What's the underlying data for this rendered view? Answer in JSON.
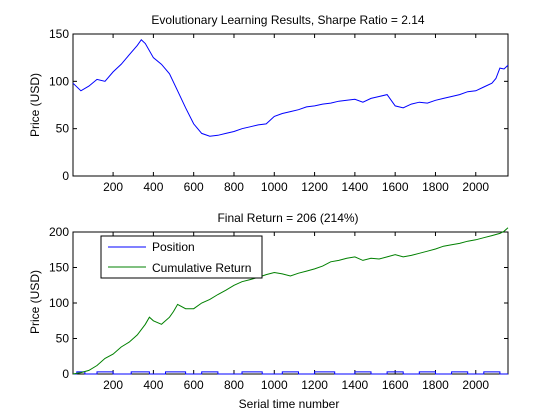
{
  "chart_data": [
    {
      "type": "line",
      "title": "Evolutionary Learning Results, Sharpe Ratio = 2.14",
      "xlabel": "",
      "ylabel": "Price (USD)",
      "xlim": [
        1,
        2160
      ],
      "ylim": [
        0,
        150
      ],
      "xticks": [
        200,
        400,
        600,
        800,
        1000,
        1200,
        1400,
        1600,
        1800,
        2000
      ],
      "yticks": [
        0,
        50,
        100,
        150
      ],
      "grid": false,
      "series": [
        {
          "color": "#0000ff",
          "x": [
            1,
            40,
            80,
            120,
            160,
            200,
            240,
            280,
            320,
            340,
            360,
            400,
            440,
            480,
            520,
            560,
            600,
            640,
            680,
            720,
            760,
            800,
            840,
            880,
            920,
            960,
            1000,
            1040,
            1080,
            1120,
            1160,
            1200,
            1240,
            1280,
            1320,
            1360,
            1400,
            1440,
            1480,
            1520,
            1560,
            1600,
            1640,
            1680,
            1720,
            1760,
            1800,
            1840,
            1880,
            1920,
            1960,
            2000,
            2040,
            2080,
            2100,
            2120,
            2140,
            2160
          ],
          "y": [
            98,
            90,
            95,
            102,
            100,
            110,
            118,
            128,
            138,
            144,
            140,
            125,
            118,
            108,
            90,
            72,
            55,
            45,
            42,
            43,
            45,
            47,
            50,
            52,
            54,
            55,
            63,
            66,
            68,
            70,
            73,
            74,
            76,
            77,
            79,
            80,
            81,
            78,
            82,
            84,
            86,
            74,
            72,
            76,
            78,
            77,
            80,
            82,
            84,
            86,
            89,
            90,
            94,
            98,
            103,
            114,
            113,
            117
          ]
        }
      ]
    },
    {
      "type": "line",
      "title": "Final Return = 206 (214%)",
      "xlabel": "Serial time number",
      "ylabel": "Price (USD)",
      "xlim": [
        1,
        2160
      ],
      "ylim": [
        0,
        200
      ],
      "xticks": [
        200,
        400,
        600,
        800,
        1000,
        1200,
        1400,
        1600,
        1800,
        2000
      ],
      "yticks": [
        0,
        50,
        100,
        150,
        200
      ],
      "grid": false,
      "legend": "top-left",
      "series": [
        {
          "name": "Position",
          "color": "#0000ff",
          "x": [
            1,
            20,
            20,
            60,
            60,
            120,
            120,
            200,
            200,
            290,
            290,
            380,
            380,
            460,
            460,
            560,
            560,
            640,
            640,
            720,
            720,
            840,
            840,
            940,
            940,
            1040,
            1040,
            1120,
            1120,
            1200,
            1200,
            1300,
            1300,
            1400,
            1400,
            1480,
            1480,
            1560,
            1560,
            1640,
            1640,
            1720,
            1720,
            1800,
            1800,
            1880,
            1880,
            1960,
            1960,
            2040,
            2040,
            2120,
            2120,
            2160
          ],
          "y": [
            0,
            0,
            3,
            3,
            0,
            0,
            3,
            3,
            0,
            0,
            3,
            3,
            0,
            0,
            3,
            3,
            0,
            0,
            3,
            3,
            0,
            0,
            3,
            3,
            0,
            0,
            3,
            3,
            0,
            0,
            3,
            3,
            0,
            0,
            3,
            3,
            0,
            0,
            3,
            3,
            0,
            0,
            3,
            3,
            0,
            0,
            3,
            3,
            0,
            0,
            3,
            3,
            0,
            0
          ]
        },
        {
          "name": "Cumulative Return",
          "color": "#008000",
          "x": [
            1,
            40,
            80,
            120,
            160,
            200,
            240,
            280,
            320,
            360,
            380,
            400,
            440,
            480,
            500,
            520,
            560,
            600,
            640,
            680,
            720,
            760,
            800,
            840,
            880,
            920,
            960,
            1000,
            1040,
            1080,
            1120,
            1160,
            1200,
            1240,
            1280,
            1320,
            1360,
            1400,
            1440,
            1480,
            1520,
            1560,
            1600,
            1640,
            1680,
            1720,
            1760,
            1800,
            1840,
            1880,
            1920,
            1960,
            2000,
            2040,
            2080,
            2120,
            2140,
            2160
          ],
          "y": [
            0,
            2,
            5,
            12,
            22,
            28,
            38,
            45,
            55,
            70,
            80,
            75,
            70,
            80,
            88,
            98,
            92,
            92,
            100,
            105,
            112,
            118,
            125,
            130,
            133,
            136,
            140,
            143,
            141,
            138,
            142,
            145,
            148,
            152,
            158,
            160,
            163,
            165,
            160,
            163,
            162,
            165,
            168,
            165,
            167,
            170,
            173,
            176,
            180,
            182,
            184,
            187,
            189,
            192,
            195,
            198,
            201,
            206
          ]
        }
      ]
    }
  ]
}
